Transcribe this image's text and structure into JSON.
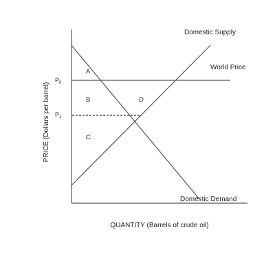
{
  "axes": {
    "y_label": "PRICE (Dollars per barrel)",
    "x_label": "QUANTITY (Barrels of crude oil)"
  },
  "price_ticks": {
    "p0": "P",
    "p0_sub": "0",
    "p1": "P",
    "p1_sub": "1"
  },
  "curves": {
    "supply": "Domestic Supply",
    "world_price": "World Price",
    "demand": "Domestic Demand"
  },
  "regions": {
    "a": "A",
    "b": "B",
    "c": "C",
    "d": "D"
  },
  "colors": {
    "line": "#555555",
    "text": "#222222",
    "background": "#ffffff"
  }
}
